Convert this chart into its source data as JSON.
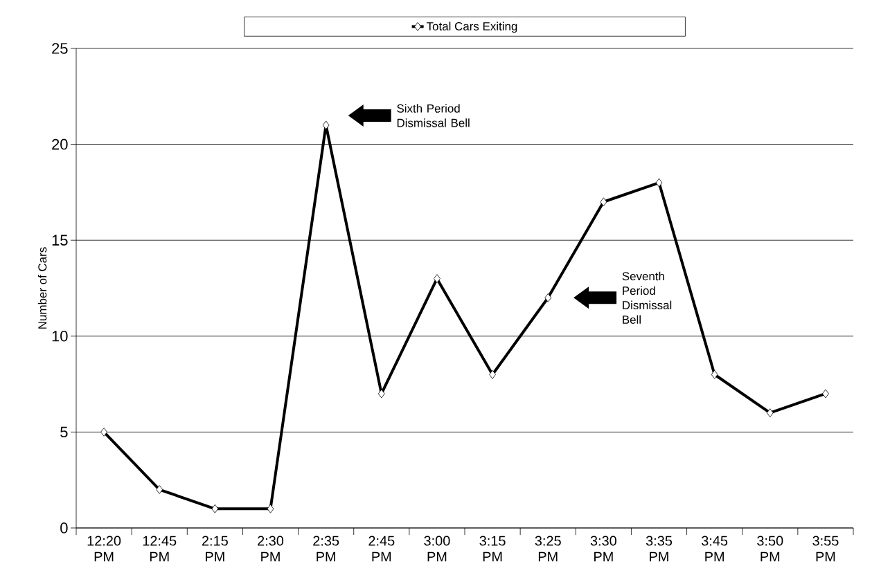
{
  "chart_data": {
    "type": "line",
    "ylabel": "Number of Cars",
    "categories": [
      "12:20 PM",
      "12:45 PM",
      "2:15 PM",
      "2:30 PM",
      "2:35 PM",
      "2:45 PM",
      "3:00 PM",
      "3:15 PM",
      "3:25 PM",
      "3:30 PM",
      "3:35 PM",
      "3:45 PM",
      "3:50 PM",
      "3:55 PM"
    ],
    "series": [
      {
        "name": "Total Cars Exiting",
        "color": "#000000",
        "values": [
          5,
          2,
          1,
          1,
          21,
          7,
          13,
          8,
          12,
          17,
          18,
          8,
          6,
          7
        ]
      }
    ],
    "ylim": [
      0,
      25
    ],
    "yticks": [
      0,
      5,
      10,
      15,
      20,
      25
    ],
    "grid": "y",
    "legend": "top",
    "marker": "diamond",
    "line_style": "solid",
    "annotations": [
      "Sixth Period Dismissal Bell",
      "Seventh Period Dismissal Bell"
    ]
  }
}
